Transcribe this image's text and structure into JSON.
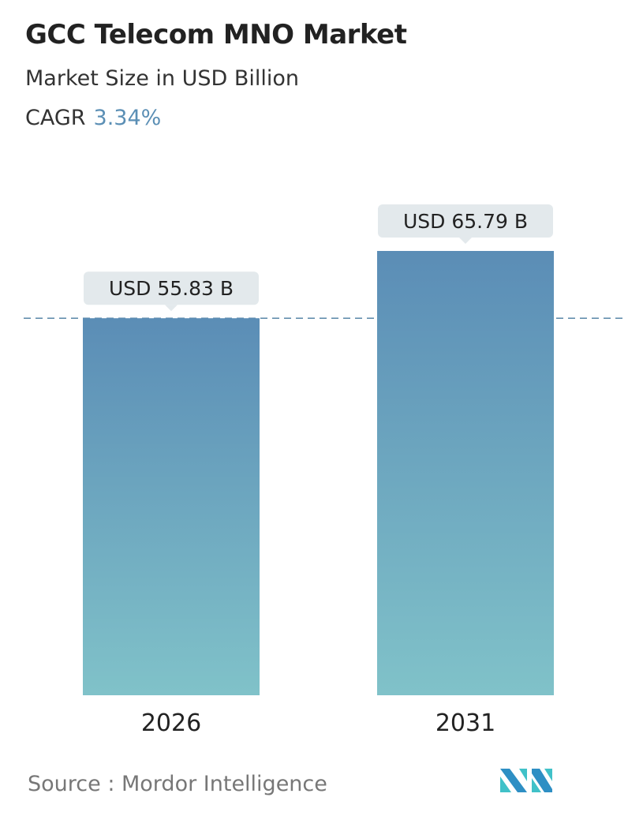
{
  "header": {
    "title": "GCC Telecom MNO Market",
    "subtitle": "Market Size in USD Billion",
    "cagr_label": "CAGR",
    "cagr_value": "3.34%"
  },
  "chart_data": {
    "type": "bar",
    "categories": [
      "2026",
      "2031"
    ],
    "values": [
      55.83,
      65.79
    ],
    "data_labels": [
      "USD 55.83 B",
      "USD 65.79 B"
    ],
    "ylim": [
      0,
      65.79
    ],
    "reference_line": 55.83,
    "grid": false,
    "colors": {
      "bar_top": "#5b8db6",
      "bar_bottom": "#80c2c9",
      "label_bg": "#e3e9ec",
      "cagr": "#5b8fb5"
    }
  },
  "footer": {
    "source": "Source :  Mordor Intelligence",
    "logo_text": "MI"
  }
}
